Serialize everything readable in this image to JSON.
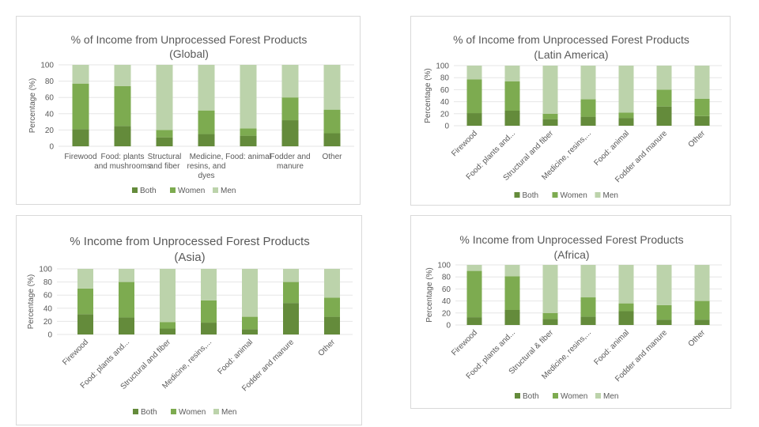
{
  "colors": {
    "Both": "#648b3b",
    "Women": "#7dab50",
    "Men": "#bcd3ab",
    "grid": "#e6e6e6"
  },
  "chart_data": [
    {
      "type": "bar",
      "stacked": true,
      "title": "% of Income from Unprocessed Forest Products",
      "subtitle": "(Global)",
      "ylabel": "Percentage (%)",
      "ylim": [
        0,
        100
      ],
      "yticks": [
        0,
        20,
        40,
        60,
        80,
        100
      ],
      "categories": [
        "Firewood",
        "Food: plants and mushrooms",
        "Structural and fiber",
        "Medicine, resins, and dyes",
        "Food: animal",
        "Fodder and manure",
        "Other"
      ],
      "series": [
        {
          "name": "Both",
          "values": [
            21,
            25,
            11,
            15,
            13,
            32,
            16
          ]
        },
        {
          "name": "Women",
          "values": [
            56,
            49,
            9,
            29,
            9,
            28,
            29
          ]
        },
        {
          "name": "Men",
          "values": [
            23,
            26,
            80,
            56,
            78,
            40,
            55
          ]
        }
      ],
      "legend": "bottom",
      "grid": true
    },
    {
      "type": "bar",
      "stacked": true,
      "title": "% of Income from Unprocessed Forest Products",
      "subtitle": "(Latin America)",
      "ylabel": "Percentage (%)",
      "ylim": [
        0,
        100
      ],
      "yticks": [
        0,
        20,
        40,
        60,
        80,
        100
      ],
      "categories": [
        "Firewood",
        "Food: plants and...",
        "Structural and fiber",
        "Medicine, resins,...",
        "Food: animal",
        "Fodder and manure",
        "Other"
      ],
      "series": [
        {
          "name": "Both",
          "values": [
            21,
            25,
            11,
            15,
            13,
            32,
            16
          ]
        },
        {
          "name": "Women",
          "values": [
            56,
            49,
            9,
            29,
            9,
            28,
            29
          ]
        },
        {
          "name": "Men",
          "values": [
            23,
            26,
            80,
            56,
            78,
            40,
            55
          ]
        }
      ],
      "legend": "bottom",
      "grid": true
    },
    {
      "type": "bar",
      "stacked": true,
      "title": "% Income from Unprocessed Forest Products",
      "subtitle": "(Asia)",
      "ylabel": "Percentage (%)",
      "ylim": [
        0,
        100
      ],
      "yticks": [
        0,
        20,
        40,
        60,
        80,
        100
      ],
      "categories": [
        "Firewood",
        "Food: plants and...",
        "Structural and fiber",
        "Medicine, resins,...",
        "Food: animal",
        "Fodder and manure",
        "Other"
      ],
      "series": [
        {
          "name": "Both",
          "values": [
            31,
            26,
            9,
            18,
            8,
            48,
            27
          ]
        },
        {
          "name": "Women",
          "values": [
            39,
            54,
            10,
            34,
            19,
            32,
            29
          ]
        },
        {
          "name": "Men",
          "values": [
            30,
            20,
            81,
            48,
            73,
            20,
            44
          ]
        }
      ],
      "legend": "bottom",
      "grid": true
    },
    {
      "type": "bar",
      "stacked": true,
      "title": "% Income from Unprocessed Forest Products",
      "subtitle": "(Africa)",
      "ylabel": "Percentage (%)",
      "ylim": [
        0,
        100
      ],
      "yticks": [
        0,
        20,
        40,
        60,
        80,
        100
      ],
      "categories": [
        "Firewood",
        "Food: plants and...",
        "Structural & fiber",
        "Medicine, resins,...",
        "Food: animal",
        "Fodder and manure",
        "Other"
      ],
      "series": [
        {
          "name": "Both",
          "values": [
            13,
            25,
            10,
            14,
            23,
            9,
            9
          ]
        },
        {
          "name": "Women",
          "values": [
            77,
            56,
            10,
            32,
            13,
            24,
            31
          ]
        },
        {
          "name": "Men",
          "values": [
            10,
            19,
            80,
            54,
            64,
            67,
            60
          ]
        }
      ],
      "legend": "bottom",
      "grid": true
    }
  ]
}
